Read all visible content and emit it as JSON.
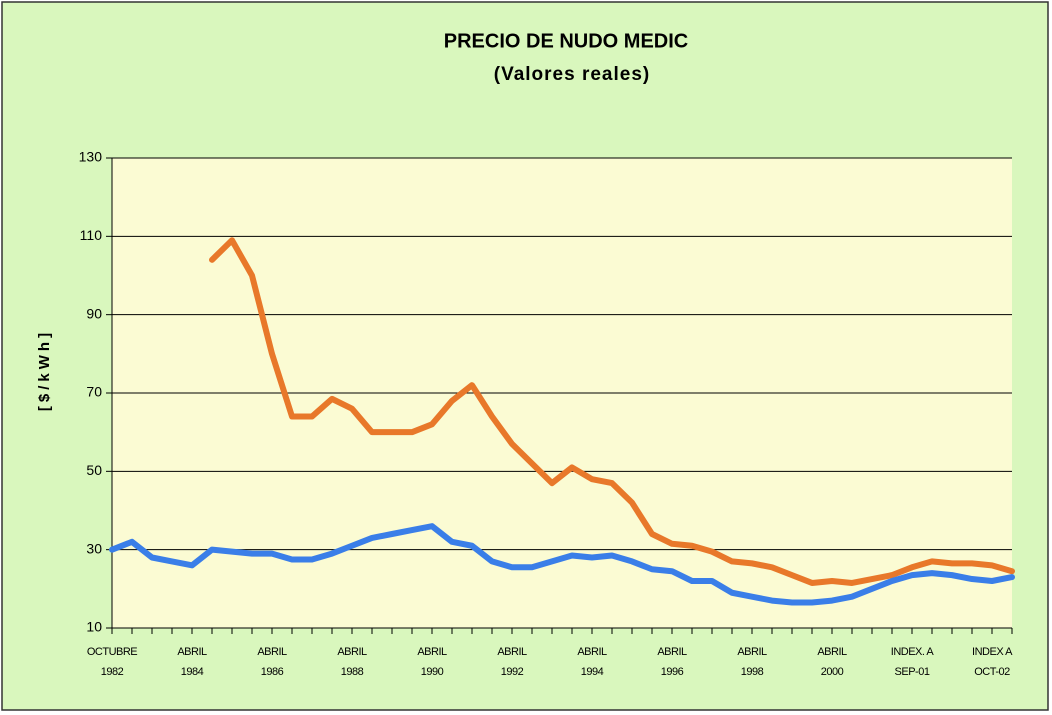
{
  "chart_data": {
    "type": "line",
    "title": "PRECIO DE NUDO MEDIC",
    "subtitle": "(Valores reales)",
    "y_label": "[$/kWh]",
    "categories": [
      [
        "OCTUBRE",
        "1982"
      ],
      null,
      null,
      null,
      [
        "ABRIL",
        "1984"
      ],
      null,
      null,
      null,
      [
        "ABRIL",
        "1986"
      ],
      null,
      null,
      null,
      [
        "ABRIL",
        "1988"
      ],
      null,
      null,
      null,
      [
        "ABRIL",
        "1990"
      ],
      null,
      null,
      null,
      [
        "ABRIL",
        "1992"
      ],
      null,
      null,
      null,
      [
        "ABRIL",
        "1994"
      ],
      null,
      null,
      null,
      [
        "ABRIL",
        "1996"
      ],
      null,
      null,
      null,
      [
        "ABRIL",
        "1998"
      ],
      null,
      null,
      null,
      [
        "ABRIL",
        "2000"
      ],
      null,
      null,
      null,
      [
        "INDEX. A",
        "SEP-01"
      ],
      null,
      null,
      null,
      [
        "INDEX A",
        "OCT-02"
      ],
      null
    ],
    "series": [
      {
        "color": "#e8782a",
        "values": [
          null,
          null,
          null,
          null,
          null,
          104,
          109,
          100,
          80,
          64,
          64,
          68.5,
          66,
          60,
          60,
          60,
          62,
          68,
          72,
          64,
          57,
          52,
          47,
          51,
          48,
          47,
          42,
          34,
          31.5,
          31,
          29.5,
          27,
          26.5,
          25.5,
          23.5,
          21.5,
          22,
          21.5,
          22.5,
          23.5,
          25.5,
          27,
          26.5,
          26.5,
          26,
          24.5
        ]
      },
      {
        "color": "#3a7ee8",
        "values": [
          30,
          32,
          28,
          27,
          26,
          30,
          29.5,
          29,
          29,
          27.5,
          27.5,
          29,
          31,
          33,
          34,
          35,
          36,
          32,
          31,
          27,
          25.5,
          25.5,
          27,
          28.5,
          28,
          28.5,
          27,
          25,
          24.5,
          22,
          22,
          19,
          18,
          17,
          16.5,
          16.5,
          17,
          18,
          20,
          22,
          23.5,
          24,
          23.5,
          22.5,
          22,
          23
        ]
      }
    ],
    "ylim": [
      10,
      130
    ],
    "yticks": [
      10,
      30,
      50,
      70,
      90,
      110,
      130
    ],
    "grid": true,
    "background": "#d9f7bd",
    "plot_background": "#fbfbd3"
  }
}
